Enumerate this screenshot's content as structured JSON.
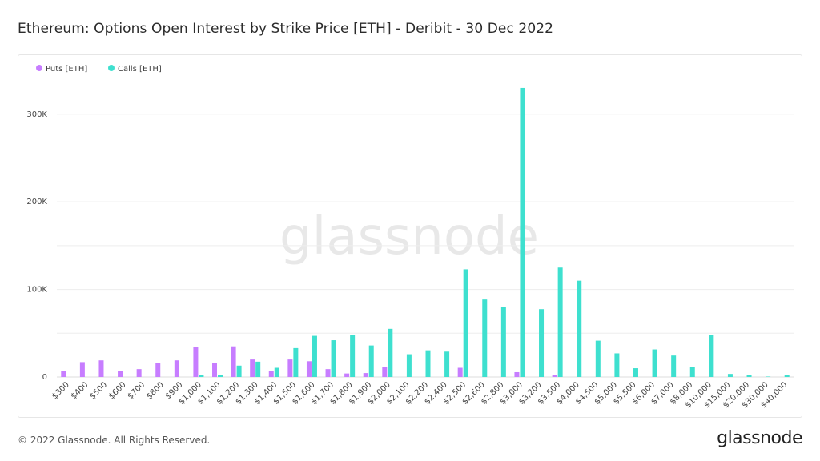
{
  "title": "Ethereum: Options Open Interest by Strike Price [ETH] - Deribit - 30 Dec 2022",
  "footer": {
    "copyright": "© 2022 Glassnode. All Rights Reserved.",
    "logo": "glassnode"
  },
  "watermark": "glassnode",
  "colors": {
    "puts": "#c77dff",
    "calls": "#3ee0cf",
    "grid": "#ededed"
  },
  "chart_data": {
    "type": "bar",
    "title": "Ethereum: Options Open Interest by Strike Price [ETH] - Deribit - 30 Dec 2022",
    "xlabel": "",
    "ylabel": "",
    "ylim": [
      0,
      340000
    ],
    "yticks": [
      0,
      100000,
      200000,
      300000
    ],
    "ytick_labels": [
      "0",
      "100K",
      "200K",
      "300K"
    ],
    "grid": true,
    "legend_position": "top-left",
    "categories": [
      "$300",
      "$400",
      "$500",
      "$600",
      "$700",
      "$800",
      "$900",
      "$1,000",
      "$1,100",
      "$1,200",
      "$1,300",
      "$1,400",
      "$1,500",
      "$1,600",
      "$1,700",
      "$1,800",
      "$1,900",
      "$2,000",
      "$2,100",
      "$2,200",
      "$2,400",
      "$2,500",
      "$2,600",
      "$2,800",
      "$3,000",
      "$3,200",
      "$3,500",
      "$4,000",
      "$4,500",
      "$5,000",
      "$5,500",
      "$6,000",
      "$7,000",
      "$8,000",
      "$10,000",
      "$15,000",
      "$20,000",
      "$30,000",
      "$40,000"
    ],
    "series": [
      {
        "name": "Puts [ETH]",
        "color": "#c77dff",
        "values": [
          7000,
          17000,
          19000,
          7000,
          9000,
          16000,
          19000,
          34000,
          16000,
          35000,
          20000,
          6500,
          20000,
          18000,
          9000,
          4000,
          4500,
          11500,
          0,
          0,
          0,
          10500,
          0,
          0,
          5500,
          0,
          2000,
          0,
          0,
          0,
          0,
          0,
          0,
          0,
          0,
          0,
          0,
          0,
          0
        ]
      },
      {
        "name": "Calls [ETH]",
        "color": "#3ee0cf",
        "values": [
          0,
          0,
          0,
          0,
          0,
          0,
          0,
          2000,
          2000,
          13000,
          17500,
          10500,
          33000,
          47000,
          42000,
          48000,
          36000,
          55000,
          26000,
          30500,
          29000,
          123000,
          88500,
          80000,
          330000,
          77500,
          125000,
          110000,
          41500,
          27000,
          10000,
          31500,
          24500,
          11500,
          48000,
          3500,
          2500,
          500,
          2000
        ]
      }
    ]
  }
}
